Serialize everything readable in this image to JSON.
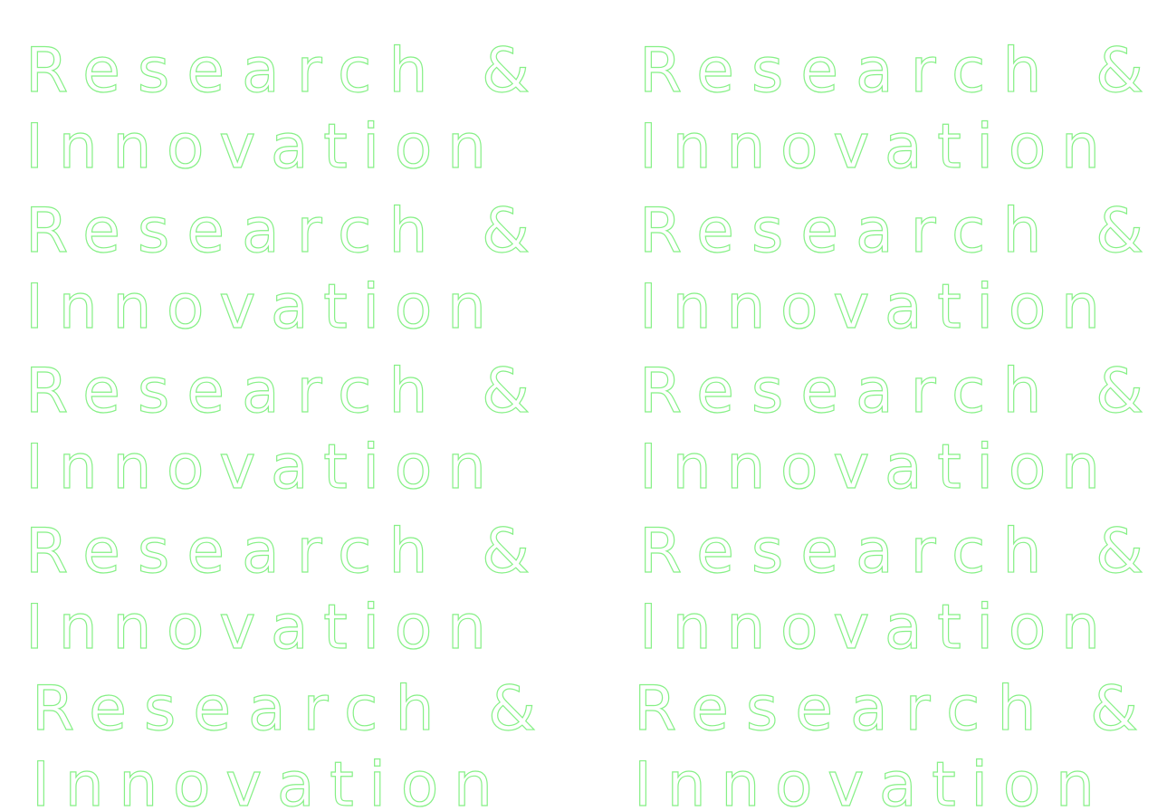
{
  "tiles": [
    {
      "lines": [
        "Research &",
        "Innovation"
      ]
    },
    {
      "lines": [
        "Research &",
        "Innovation"
      ]
    },
    {
      "lines": [
        "Research &",
        "Innovation"
      ]
    },
    {
      "lines": [
        "Research &",
        "Innovation"
      ]
    },
    {
      "lines": [
        "Research &",
        "Innovation"
      ]
    },
    {
      "lines": [
        "Research &",
        "Innovation"
      ]
    },
    {
      "lines": [
        "Research &",
        "Innovation"
      ]
    },
    {
      "lines": [
        "Research &",
        "Innovation"
      ]
    },
    {
      "lines": [
        "Research &",
        "Innovation"
      ]
    },
    {
      "lines": [
        "Research &",
        "Innovation"
      ]
    }
  ]
}
